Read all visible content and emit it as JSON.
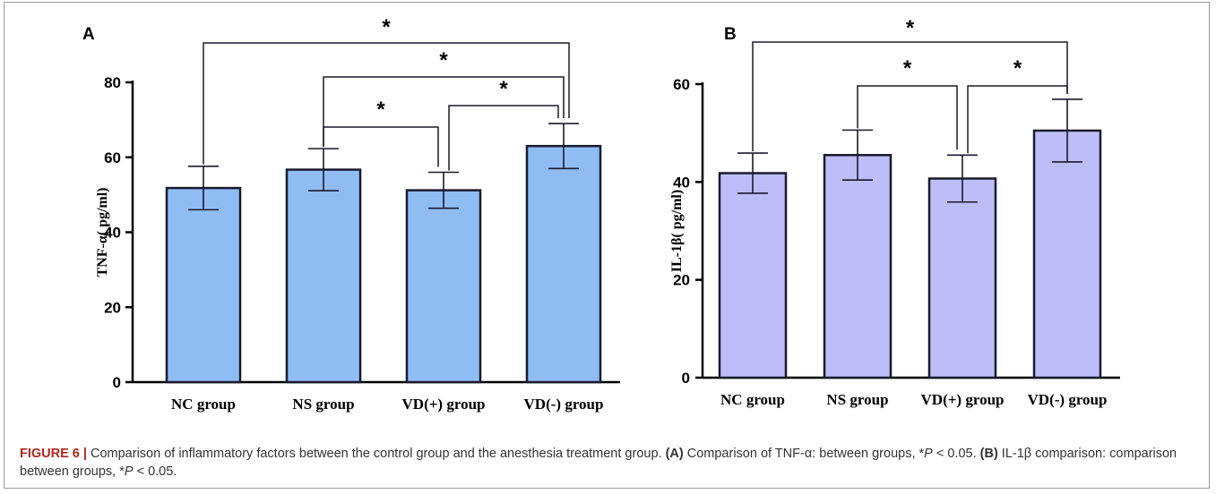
{
  "chart_data": [
    {
      "panel_label": "A",
      "type": "bar",
      "categories": [
        "NC group",
        "NS group",
        "VD(+) group",
        "VD(-) group"
      ],
      "values": [
        51.8,
        56.7,
        51.2,
        63.0
      ],
      "errors": [
        5.8,
        5.6,
        4.8,
        6.0
      ],
      "ylabel": "TNF-α( pg/ml)",
      "ylim": [
        0,
        80
      ],
      "yticks": [
        0,
        20,
        40,
        60,
        80
      ],
      "color": "#8fbcf3",
      "significance": [
        {
          "from": 0,
          "to": 3,
          "label": "*"
        },
        {
          "from": 1,
          "to": 3,
          "label": "*"
        },
        {
          "from": 2,
          "to": 3,
          "label": "*"
        },
        {
          "from": 1,
          "to": 2,
          "label": "*"
        }
      ]
    },
    {
      "panel_label": "B",
      "type": "bar",
      "categories": [
        "NC group",
        "NS group",
        "VD(+) group",
        "VD(-) group"
      ],
      "values": [
        41.8,
        45.5,
        40.7,
        50.5
      ],
      "errors": [
        4.1,
        5.1,
        4.8,
        6.4
      ],
      "ylabel": "IL-1β( pg/ml)",
      "ylim": [
        0,
        60
      ],
      "yticks": [
        0,
        20,
        40,
        60
      ],
      "color": "#bdbdf7",
      "significance": [
        {
          "from": 0,
          "to": 3,
          "label": "*"
        },
        {
          "from": 1,
          "to": 2,
          "label": "*"
        },
        {
          "from": 2,
          "to": 3,
          "label": "*"
        }
      ]
    }
  ],
  "caption": {
    "figure_label": "FIGURE 6 |",
    "text_1": " Comparison of inflammatory factors between the control group and the anesthesia treatment group. ",
    "ref_a": "(A)",
    "text_2": " Comparison of TNF-α: between groups, *",
    "p_symbol": "P",
    "text_3": " < 0.05. ",
    "ref_b": "(B)",
    "text_4": " IL-1β comparison: comparison between groups, *",
    "text_5": " < 0.05."
  }
}
